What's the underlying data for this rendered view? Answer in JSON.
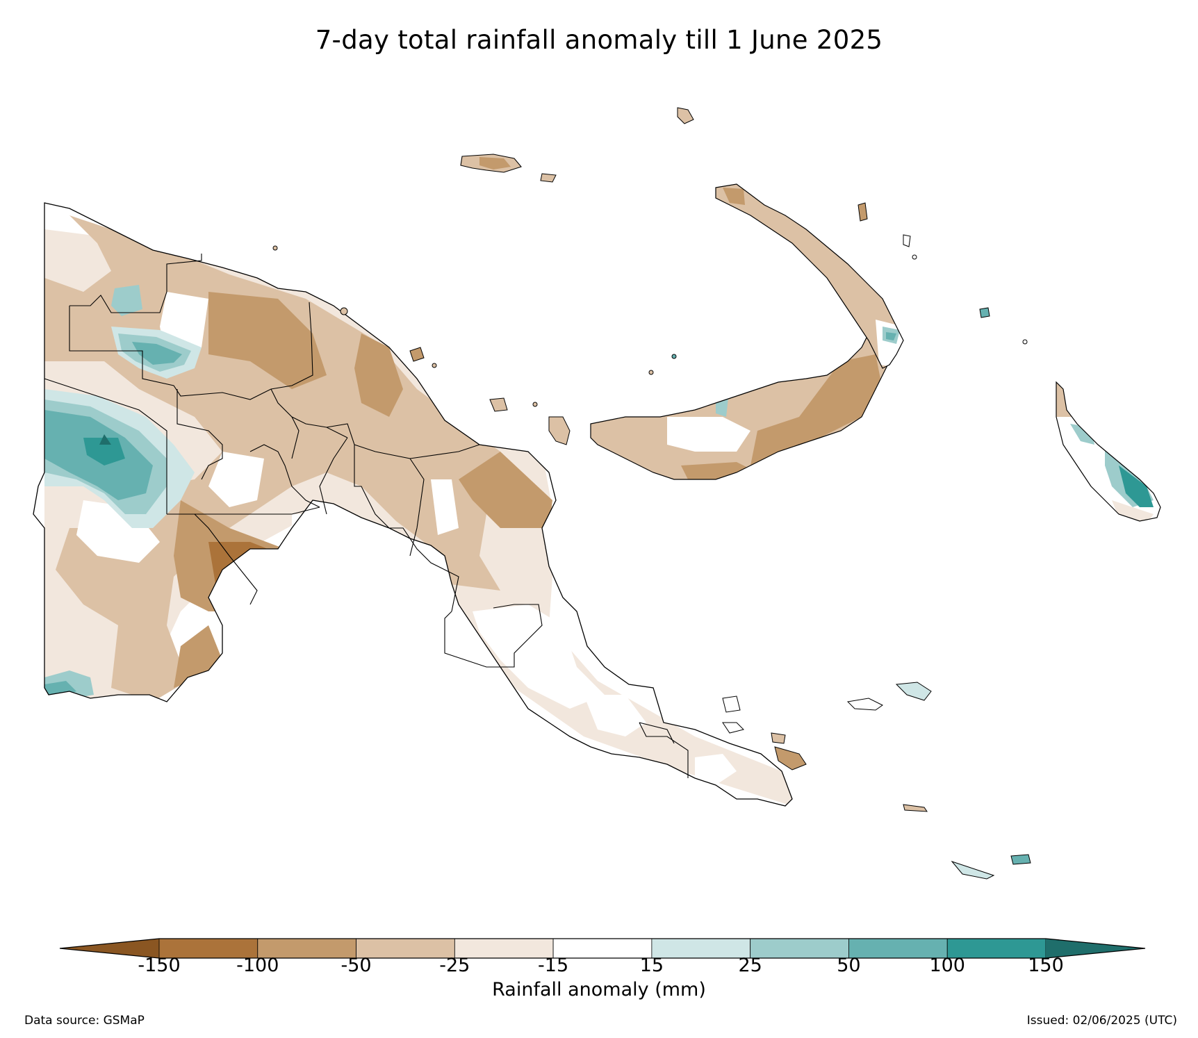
{
  "title": "7-day total rainfall anomaly till 1 June 2025",
  "colorbar": {
    "label": "Rainfall anomaly (mm)",
    "ticks": [
      "-150",
      "-100",
      "-50",
      "-25",
      "-15",
      "15",
      "25",
      "50",
      "100",
      "150"
    ],
    "colors": {
      "extend_low": "#8a5622",
      "bins": [
        "#ab733a",
        "#c39a6c",
        "#dcc1a5",
        "#f2e7dd",
        "#ffffff",
        "#cfe6e6",
        "#9dcccb",
        "#66b1b0",
        "#2e9894"
      ],
      "extend_high": "#1f6e6b"
    }
  },
  "footer": {
    "source": "Data source: GSMaP",
    "issued": "Issued: 02/06/2025 (UTC)"
  }
}
